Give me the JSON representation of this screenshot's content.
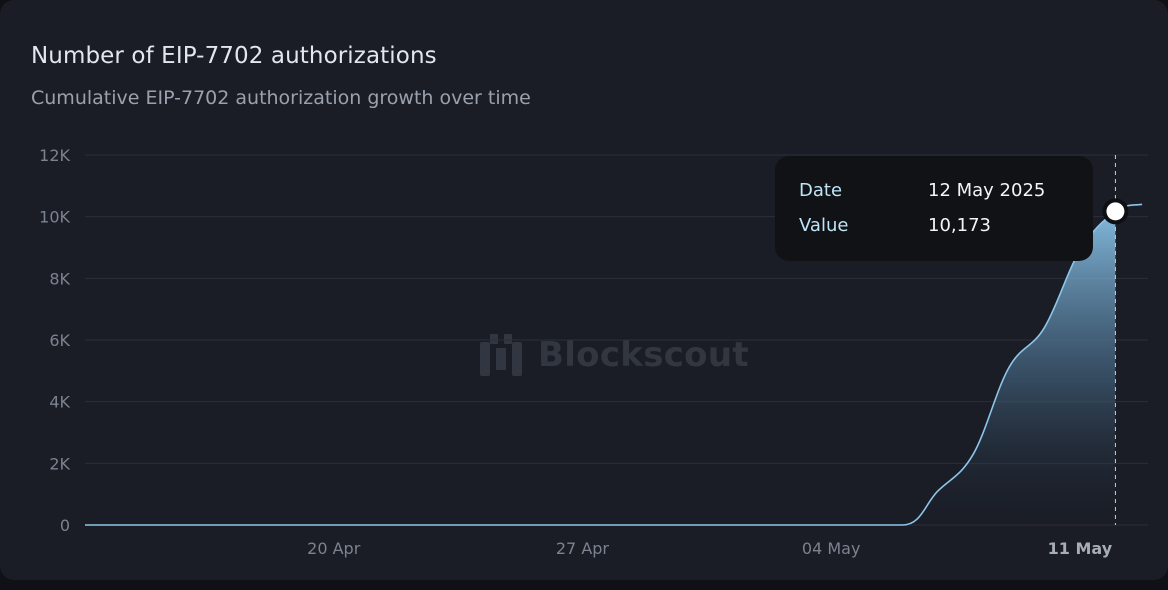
{
  "header": {
    "title": "Number of EIP-7702 authorizations",
    "subtitle": "Cumulative EIP-7702 authorization growth over time"
  },
  "watermark": {
    "text": "Blockscout",
    "icon": "blockscout-logo-icon"
  },
  "tooltip": {
    "date_label": "Date",
    "date_value": "12 May 2025",
    "value_label": "Value",
    "value_value": "10,173"
  },
  "colors": {
    "background": "#1a1d26",
    "line": "#8cc6ea",
    "area_top": "#8ec8ee",
    "grid": "#2b2f3a",
    "tooltip_bg": "#111215"
  },
  "chart_data": {
    "type": "area",
    "title": "Number of EIP-7702 authorizations",
    "subtitle": "Cumulative EIP-7702 authorization growth over time",
    "xlabel": "",
    "ylabel": "",
    "ylim": [
      0,
      12000
    ],
    "yticks": [
      0,
      2000,
      4000,
      6000,
      8000,
      10000,
      12000
    ],
    "ytick_labels": [
      "0",
      "2K",
      "4K",
      "6K",
      "8K",
      "10K",
      "12K"
    ],
    "xticks": [
      {
        "label": "20 Apr",
        "date": "2025-04-20",
        "bold": false
      },
      {
        "label": "27 Apr",
        "date": "2025-04-27",
        "bold": false
      },
      {
        "label": "04 May",
        "date": "2025-05-04",
        "bold": false
      },
      {
        "label": "11 May",
        "date": "2025-05-11",
        "bold": true
      }
    ],
    "grid": true,
    "highlight": {
      "date": "2025-05-12",
      "value": 10173
    },
    "series": [
      {
        "points": [
          {
            "date": "2025-04-13",
            "value": 0
          },
          {
            "date": "2025-04-20",
            "value": 0
          },
          {
            "date": "2025-04-27",
            "value": 0
          },
          {
            "date": "2025-05-04",
            "value": 0
          },
          {
            "date": "2025-05-06",
            "value": 0
          },
          {
            "date": "2025-05-07",
            "value": 1100
          },
          {
            "date": "2025-05-08",
            "value": 2300
          },
          {
            "date": "2025-05-09",
            "value": 5100
          },
          {
            "date": "2025-05-10",
            "value": 6400
          },
          {
            "date": "2025-05-11",
            "value": 8900
          },
          {
            "date": "2025-05-12",
            "value": 10173
          },
          {
            "date": "2025-05-12T18:00",
            "value": 10400
          }
        ]
      }
    ]
  }
}
